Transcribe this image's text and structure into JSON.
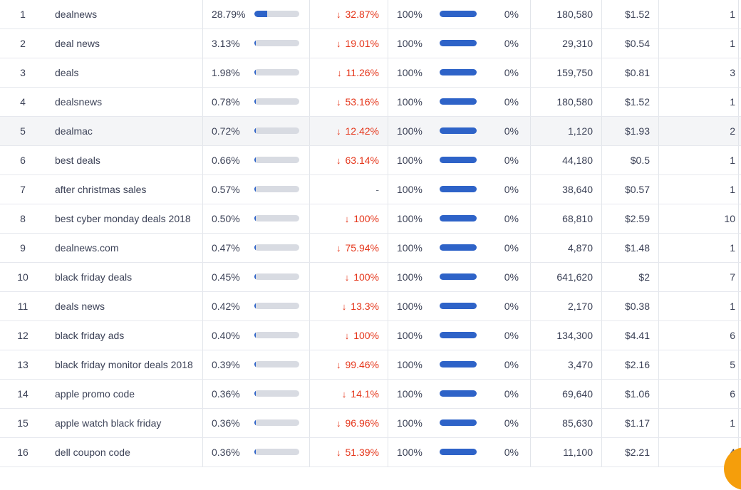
{
  "rows": [
    {
      "n": "1",
      "kw": "dealnews",
      "share": "28.79%",
      "share_frac": 0.2879,
      "change": "32.87%",
      "dir": "down",
      "vis": "100%",
      "zero": "0%",
      "vol": "180,580",
      "cpc": "$1.52",
      "res": "1"
    },
    {
      "n": "2",
      "kw": "deal news",
      "share": "3.13%",
      "share_frac": 0.0313,
      "change": "19.01%",
      "dir": "down",
      "vis": "100%",
      "zero": "0%",
      "vol": "29,310",
      "cpc": "$0.54",
      "res": "1"
    },
    {
      "n": "3",
      "kw": "deals",
      "share": "1.98%",
      "share_frac": 0.0198,
      "change": "11.26%",
      "dir": "down",
      "vis": "100%",
      "zero": "0%",
      "vol": "159,750",
      "cpc": "$0.81",
      "res": "3"
    },
    {
      "n": "4",
      "kw": "dealsnews",
      "share": "0.78%",
      "share_frac": 0.0078,
      "change": "53.16%",
      "dir": "down",
      "vis": "100%",
      "zero": "0%",
      "vol": "180,580",
      "cpc": "$1.52",
      "res": "1"
    },
    {
      "n": "5",
      "kw": "dealmac",
      "share": "0.72%",
      "share_frac": 0.0072,
      "change": "12.42%",
      "dir": "down",
      "vis": "100%",
      "zero": "0%",
      "vol": "1,120",
      "cpc": "$1.93",
      "res": "2"
    },
    {
      "n": "6",
      "kw": "best deals",
      "share": "0.66%",
      "share_frac": 0.0066,
      "change": "63.14%",
      "dir": "down",
      "vis": "100%",
      "zero": "0%",
      "vol": "44,180",
      "cpc": "$0.5",
      "res": "1"
    },
    {
      "n": "7",
      "kw": "after christmas sales",
      "share": "0.57%",
      "share_frac": 0.0057,
      "change": "-",
      "dir": "none",
      "vis": "100%",
      "zero": "0%",
      "vol": "38,640",
      "cpc": "$0.57",
      "res": "1"
    },
    {
      "n": "8",
      "kw": "best cyber monday deals 2018",
      "share": "0.50%",
      "share_frac": 0.005,
      "change": "100%",
      "dir": "down",
      "vis": "100%",
      "zero": "0%",
      "vol": "68,810",
      "cpc": "$2.59",
      "res": "10"
    },
    {
      "n": "9",
      "kw": "dealnews.com",
      "share": "0.47%",
      "share_frac": 0.0047,
      "change": "75.94%",
      "dir": "down",
      "vis": "100%",
      "zero": "0%",
      "vol": "4,870",
      "cpc": "$1.48",
      "res": "1"
    },
    {
      "n": "10",
      "kw": "black friday deals",
      "share": "0.45%",
      "share_frac": 0.0045,
      "change": "100%",
      "dir": "down",
      "vis": "100%",
      "zero": "0%",
      "vol": "641,620",
      "cpc": "$2",
      "res": "7"
    },
    {
      "n": "11",
      "kw": "deals news",
      "share": "0.42%",
      "share_frac": 0.0042,
      "change": "13.3%",
      "dir": "down",
      "vis": "100%",
      "zero": "0%",
      "vol": "2,170",
      "cpc": "$0.38",
      "res": "1"
    },
    {
      "n": "12",
      "kw": "black friday ads",
      "share": "0.40%",
      "share_frac": 0.004,
      "change": "100%",
      "dir": "down",
      "vis": "100%",
      "zero": "0%",
      "vol": "134,300",
      "cpc": "$4.41",
      "res": "6"
    },
    {
      "n": "13",
      "kw": "black friday monitor deals 2018",
      "share": "0.39%",
      "share_frac": 0.0039,
      "change": "99.46%",
      "dir": "down",
      "vis": "100%",
      "zero": "0%",
      "vol": "3,470",
      "cpc": "$2.16",
      "res": "5"
    },
    {
      "n": "14",
      "kw": "apple promo code",
      "share": "0.36%",
      "share_frac": 0.0036,
      "change": "14.1%",
      "dir": "down",
      "vis": "100%",
      "zero": "0%",
      "vol": "69,640",
      "cpc": "$1.06",
      "res": "6"
    },
    {
      "n": "15",
      "kw": "apple watch black friday",
      "share": "0.36%",
      "share_frac": 0.0036,
      "change": "96.96%",
      "dir": "down",
      "vis": "100%",
      "zero": "0%",
      "vol": "85,630",
      "cpc": "$1.17",
      "res": "1"
    },
    {
      "n": "16",
      "kw": "dell coupon code",
      "share": "0.36%",
      "share_frac": 0.0036,
      "change": "51.39%",
      "dir": "down",
      "vis": "100%",
      "zero": "0%",
      "vol": "11,100",
      "cpc": "$2.21",
      "res": "4"
    }
  ],
  "highlighted_row": 4,
  "icons": {
    "down": "arrow-down-icon"
  },
  "colors": {
    "negative": "#e5361b",
    "bar_fill": "#2e63c8",
    "bar_track": "#d8dbe2",
    "accent": "#f59e0b"
  }
}
